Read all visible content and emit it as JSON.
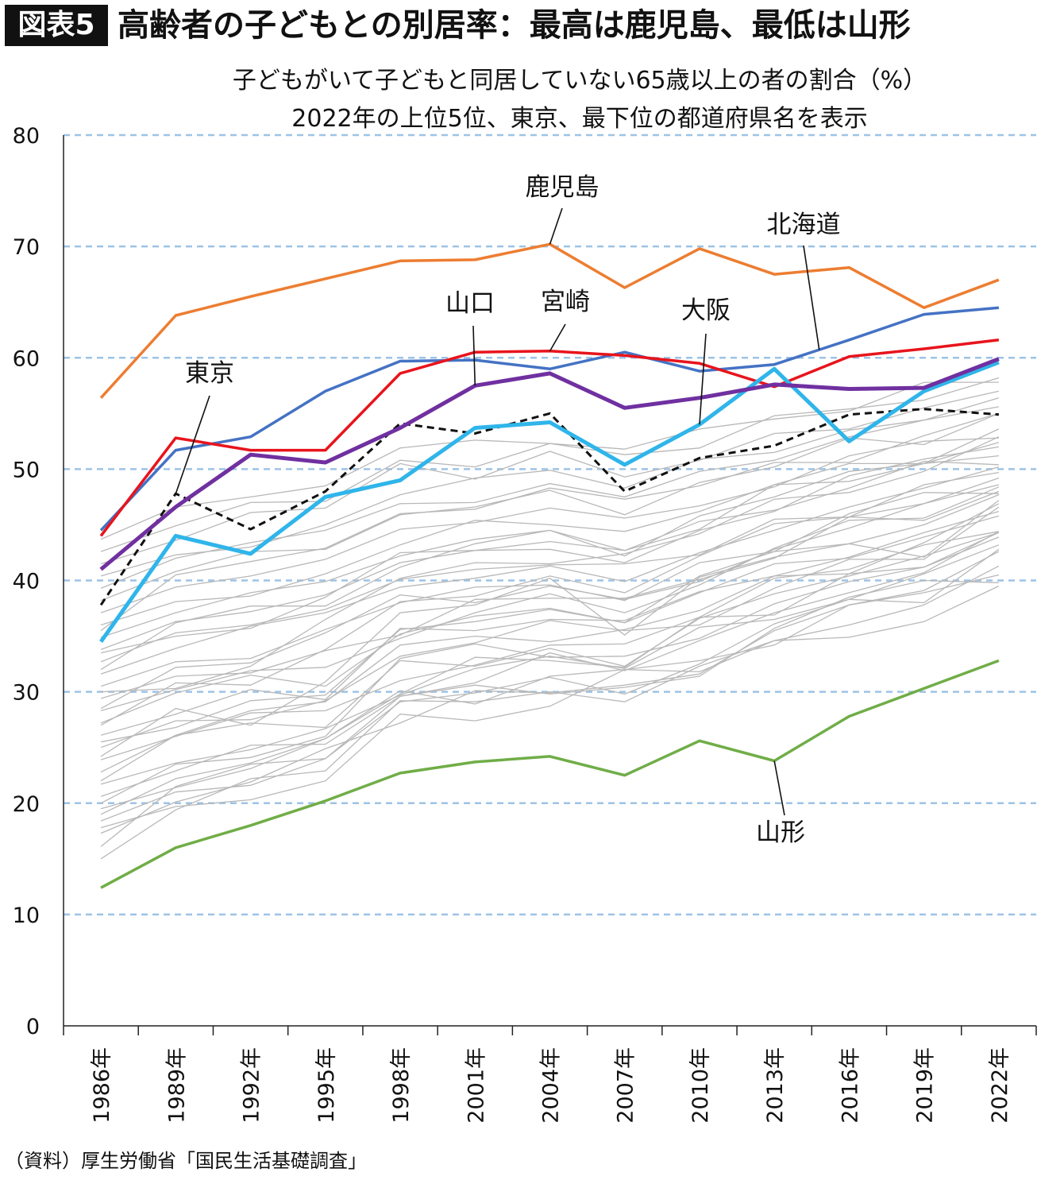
{
  "figure_label": "図表5",
  "title": "高齢者の子どもとの別居率：最高は鹿児島、最低は山形",
  "subtitle_line1": "子どもがいて子どもと同居していない65歳以上の者の割合（%）",
  "subtitle_line2": "2022年の上位5位、東京、最下位の都道府県名を表示",
  "source": "（資料）厚生労働省「国民生活基礎調査」",
  "chart_data": {
    "type": "line",
    "ylim": [
      0,
      80
    ],
    "yticks": [
      0,
      10,
      20,
      30,
      40,
      50,
      60,
      70,
      80
    ],
    "grid": "horizontal dashed",
    "categories": [
      "1986年",
      "1989年",
      "1992年",
      "1995年",
      "1998年",
      "2001年",
      "2004年",
      "2007年",
      "2010年",
      "2013年",
      "2016年",
      "2019年",
      "2022年"
    ],
    "highlight_series": [
      {
        "name": "鹿児島",
        "color": "#ED7D31",
        "width": 3.5,
        "values": [
          56.4,
          63.8,
          65.5,
          67.1,
          68.7,
          68.8,
          70.2,
          66.3,
          69.8,
          67.5,
          68.1,
          64.5,
          67.0
        ]
      },
      {
        "name": "北海道",
        "color": "#4472C4",
        "width": 3.5,
        "values": [
          44.5,
          51.7,
          52.9,
          57.0,
          59.7,
          59.8,
          59.0,
          60.5,
          58.8,
          59.4,
          61.6,
          63.9,
          64.5
        ]
      },
      {
        "name": "宮崎",
        "color": "#E8141C",
        "width": 3.5,
        "values": [
          44.0,
          52.8,
          51.7,
          51.7,
          58.6,
          60.5,
          60.6,
          60.2,
          59.5,
          57.4,
          60.1,
          60.8,
          61.6
        ]
      },
      {
        "name": "山口",
        "color": "#7030A0",
        "width": 5,
        "values": [
          41.0,
          46.6,
          51.3,
          50.6,
          53.7,
          57.5,
          58.6,
          55.5,
          56.4,
          57.6,
          57.2,
          57.3,
          59.9
        ]
      },
      {
        "name": "大阪",
        "color": "#2FB5EA",
        "width": 5,
        "values": [
          34.5,
          44.0,
          42.4,
          47.5,
          49.0,
          53.7,
          54.2,
          50.4,
          54.0,
          59.0,
          52.5,
          57.0,
          59.6
        ]
      },
      {
        "name": "東京",
        "color": "#111111",
        "width": 3,
        "dash": "9,6",
        "values": [
          37.8,
          47.8,
          44.6,
          48.0,
          54.1,
          53.2,
          55.0,
          48.0,
          51.0,
          52.1,
          54.9,
          55.4,
          54.9
        ]
      },
      {
        "name": "山形",
        "color": "#70AD47",
        "width": 3.5,
        "values": [
          12.4,
          16.0,
          18.0,
          20.2,
          22.7,
          23.7,
          24.2,
          22.5,
          25.6,
          23.8,
          27.8,
          30.3,
          32.8
        ]
      }
    ],
    "other_series_color": "#b8b8b8",
    "other_series": [
      [
        15.0,
        19.4,
        22.2,
        22.9,
        29.2,
        29.1,
        30.0,
        29.1,
        32.3,
        34.6,
        36.0,
        37.8,
        41.3
      ],
      [
        16.1,
        21.5,
        23.5,
        24.0,
        29.1,
        29.9,
        31.3,
        29.8,
        32.5,
        36.1,
        38.3,
        38.0,
        42.8
      ],
      [
        17.3,
        20.1,
        21.9,
        24.9,
        27.2,
        30.1,
        29.9,
        30.6,
        31.6,
        35.5,
        37.8,
        38.9,
        40.5
      ],
      [
        18.4,
        21.0,
        21.6,
        24.0,
        29.6,
        30.6,
        29.8,
        30.4,
        31.4,
        35.7,
        38.5,
        40.0,
        39.8
      ],
      [
        19.5,
        21.4,
        23.1,
        25.8,
        30.1,
        28.9,
        31.4,
        32.0,
        32.8,
        34.2,
        37.8,
        39.1,
        42.6
      ],
      [
        20.6,
        22.9,
        25.2,
        25.3,
        29.6,
        30.8,
        33.5,
        31.9,
        34.6,
        37.1,
        38.9,
        40.7,
        44.4
      ],
      [
        21.7,
        23.6,
        24.8,
        26.7,
        29.7,
        32.1,
        33.2,
        32.1,
        35.8,
        36.5,
        38.3,
        40.6,
        43.2
      ],
      [
        22.8,
        26.1,
        27.2,
        26.8,
        32.8,
        32.3,
        33.9,
        32.3,
        36.6,
        38.8,
        40.4,
        42.2,
        44.3
      ],
      [
        23.9,
        26.0,
        28.1,
        28.3,
        31.0,
        32.4,
        34.2,
        34.3,
        36.7,
        40.2,
        41.0,
        43.2,
        44.4
      ],
      [
        25.0,
        27.4,
        27.5,
        29.2,
        33.2,
        34.4,
        36.4,
        35.5,
        36.0,
        39.3,
        41.9,
        41.9,
        46.6
      ],
      [
        26.1,
        28.0,
        30.2,
        29.3,
        35.7,
        35.5,
        36.5,
        36.4,
        39.0,
        40.4,
        42.1,
        44.3,
        46.2
      ],
      [
        27.2,
        29.9,
        31.5,
        30.5,
        35.2,
        36.8,
        37.5,
        36.2,
        38.9,
        41.5,
        42.0,
        43.9,
        45.8
      ],
      [
        28.3,
        30.2,
        31.9,
        32.2,
        34.8,
        37.1,
        38.8,
        37.1,
        39.6,
        42.9,
        45.4,
        45.6,
        48.4
      ],
      [
        29.4,
        31.4,
        31.7,
        33.7,
        35.1,
        38.3,
        38.4,
        38.4,
        40.1,
        42.0,
        45.7,
        45.4,
        48.0
      ],
      [
        30.5,
        32.7,
        33.0,
        35.6,
        38.0,
        39.4,
        39.6,
        38.2,
        41.6,
        42.6,
        46.0,
        47.9,
        47.8
      ],
      [
        31.6,
        33.9,
        35.9,
        37.1,
        39.4,
        40.2,
        41.3,
        39.9,
        42.5,
        44.5,
        46.6,
        48.3,
        50.2
      ],
      [
        32.7,
        35.3,
        36.0,
        37.4,
        40.1,
        41.0,
        41.4,
        41.5,
        42.3,
        45.5,
        45.7,
        48.6,
        49.7
      ],
      [
        33.8,
        36.3,
        37.2,
        38.7,
        41.6,
        42.7,
        42.8,
        41.6,
        44.5,
        46.2,
        49.4,
        50.9,
        52.0
      ],
      [
        34.9,
        37.1,
        38.9,
        39.9,
        42.2,
        43.7,
        44.5,
        42.2,
        45.8,
        47.5,
        49.8,
        50.5,
        51.2
      ],
      [
        36.0,
        38.1,
        38.6,
        40.6,
        43.2,
        45.4,
        45.0,
        44.4,
        46.2,
        48.6,
        50.5,
        50.5,
        53.6
      ],
      [
        37.1,
        39.4,
        40.4,
        41.9,
        44.6,
        45.2,
        46.5,
        45.6,
        46.7,
        48.4,
        51.2,
        52.5,
        52.8
      ],
      [
        38.2,
        40.8,
        42.6,
        42.8,
        45.9,
        46.6,
        48.1,
        45.9,
        48.8,
        50.2,
        52.8,
        52.2,
        55.0
      ],
      [
        39.3,
        42.0,
        43.4,
        44.5,
        46.9,
        47.0,
        48.7,
        47.5,
        49.8,
        50.8,
        52.9,
        54.4,
        55.6
      ],
      [
        40.4,
        42.3,
        43.0,
        45.0,
        47.7,
        49.2,
        49.9,
        48.3,
        50.9,
        51.5,
        53.5,
        54.4,
        56.4
      ],
      [
        41.5,
        43.6,
        46.1,
        46.5,
        50.5,
        49.1,
        51.6,
        49.3,
        50.8,
        53.2,
        53.6,
        55.5,
        57.0
      ],
      [
        42.6,
        44.9,
        47.0,
        47.1,
        50.8,
        50.2,
        52.3,
        51.3,
        51.9,
        54.8,
        55.4,
        56.2,
        58.2
      ],
      [
        43.7,
        46.6,
        47.5,
        48.5,
        51.9,
        52.6,
        52.3,
        51.8,
        53.6,
        54.5,
        55.2,
        57.8,
        57.8
      ],
      [
        24.2,
        28.5,
        27.0,
        30.9,
        37.1,
        37.8,
        40.2,
        35.1,
        40.3,
        42.1,
        43.3,
        42.1,
        47.2
      ],
      [
        30.0,
        30.3,
        32.3,
        36.5,
        40.2,
        41.6,
        41.5,
        42.4,
        44.2,
        47.3,
        47.9,
        49.8,
        52.9
      ],
      [
        35.5,
        40.5,
        41.7,
        42.9,
        46.0,
        46.4,
        48.3,
        47.3,
        48.5,
        50.6,
        50.6,
        53.0,
        55.0
      ],
      [
        20.0,
        23.5,
        24.1,
        26.0,
        33.0,
        34.3,
        33.1,
        33.2,
        34.8,
        37.9,
        39.9,
        41.2,
        44.3
      ],
      [
        17.8,
        19.7,
        20.3,
        22.0,
        28.0,
        27.4,
        28.7,
        32.0,
        31.8,
        34.6,
        34.9,
        36.3,
        39.5
      ],
      [
        22.0,
        26.1,
        28.3,
        29.1,
        34.2,
        35.0,
        34.5,
        35.6,
        37.3,
        40.4,
        40.6,
        43.4,
        46.9
      ],
      [
        27.0,
        30.8,
        30.6,
        33.8,
        38.1,
        38.6,
        40.4,
        38.9,
        42.2,
        45.1,
        45.7,
        46.9,
        49.2
      ],
      [
        32.0,
        36.2,
        37.7,
        37.7,
        41.2,
        43.3,
        44.5,
        42.7,
        44.6,
        48.6,
        48.9,
        50.5,
        52.4
      ],
      [
        25.5,
        26.8,
        29.2,
        29.7,
        35.6,
        36.3,
        37.4,
        36.2,
        40.4,
        42.6,
        43.3,
        45.0,
        47.7
      ],
      [
        19.0,
        22.2,
        23.6,
        25.8,
        29.8,
        33.1,
        32.8,
        32.2,
        36.7,
        36.9,
        40.6,
        41.2,
        43.9
      ],
      [
        33.5,
        35.0,
        35.7,
        38.5,
        42.5,
        42.7,
        43.5,
        42.7,
        45.3,
        46.3,
        48.3,
        50.7,
        50.4
      ],
      [
        28.5,
        32.2,
        32.6,
        35.3,
        38.7,
        38.0,
        39.5,
        38.3,
        39.9,
        42.8,
        44.7,
        46.9,
        48.6
      ]
    ],
    "annotations": [
      {
        "label": "鹿児島",
        "series": "鹿児島"
      },
      {
        "label": "北海道",
        "series": "北海道"
      },
      {
        "label": "山口",
        "series": "山口"
      },
      {
        "label": "宮崎",
        "series": "宮崎"
      },
      {
        "label": "大阪",
        "series": "大阪"
      },
      {
        "label": "東京",
        "series": "東京"
      },
      {
        "label": "山形",
        "series": "山形"
      }
    ]
  }
}
